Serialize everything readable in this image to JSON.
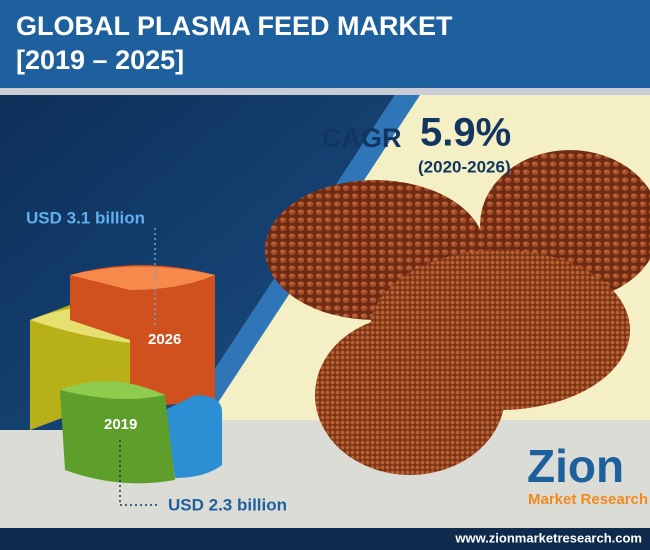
{
  "header": {
    "title_line1": "GLOBAL PLASMA FEED MARKET",
    "title_line2": "[2019 – 2025]"
  },
  "cagr": {
    "label": "CAGR",
    "value": "5.9%",
    "period": "(2020-2026)"
  },
  "callouts": [
    {
      "year": "2026",
      "value": "USD 3.1 billion"
    },
    {
      "year": "2019",
      "value": "USD 2.3 billion"
    }
  ],
  "logo": {
    "name": "Zion",
    "tagline": "Market Research"
  },
  "footer": {
    "url": "www.zionmarketresearch.com"
  }
}
